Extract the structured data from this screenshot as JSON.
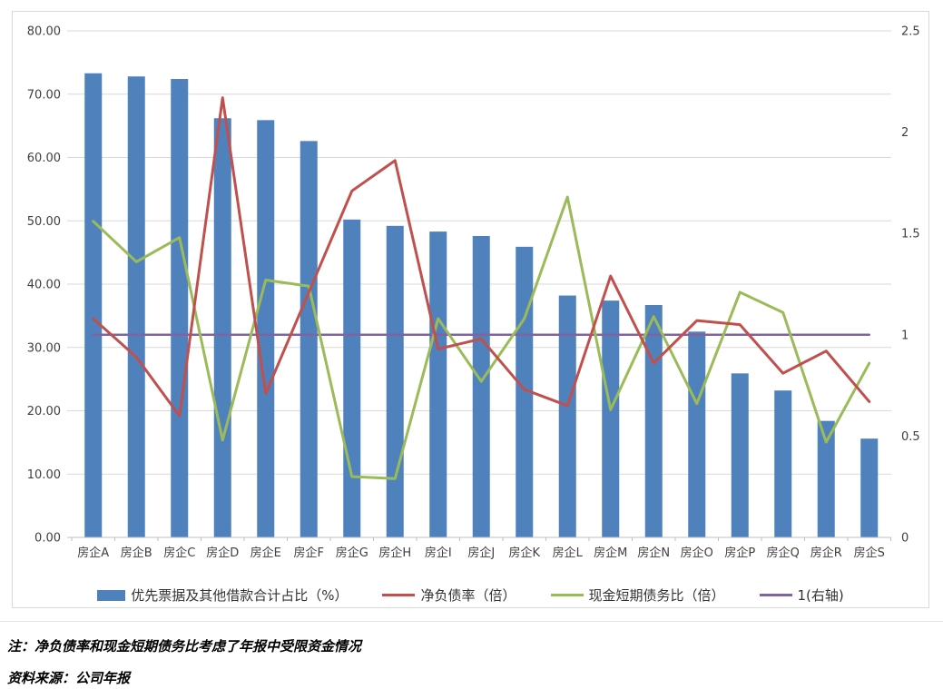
{
  "chart_data": {
    "type": "combo",
    "categories": [
      "房企A",
      "房企B",
      "房企C",
      "房企D",
      "房企E",
      "房企F",
      "房企G",
      "房企H",
      "房企I",
      "房企J",
      "房企K",
      "房企L",
      "房企M",
      "房企N",
      "房企O",
      "房企P",
      "房企Q",
      "房企R",
      "房企S"
    ],
    "series": [
      {
        "name": "优先票据及其他借款合计占比（%）",
        "type": "bar",
        "axis": "left",
        "color": "#4F81BD",
        "values": [
          73.3,
          72.8,
          72.4,
          66.2,
          65.9,
          62.6,
          50.2,
          49.2,
          48.3,
          47.6,
          45.9,
          38.2,
          37.4,
          36.7,
          32.5,
          25.9,
          23.2,
          18.4,
          15.6
        ]
      },
      {
        "name": "净负债率（倍）",
        "type": "line",
        "axis": "right",
        "color": "#C0504D",
        "values": [
          1.08,
          0.89,
          0.6,
          2.17,
          0.71,
          1.21,
          1.71,
          1.86,
          0.93,
          0.98,
          0.73,
          0.65,
          1.29,
          0.86,
          1.07,
          1.05,
          0.81,
          0.92,
          0.67
        ]
      },
      {
        "name": "现金短期债务比（倍）",
        "type": "line",
        "axis": "right",
        "color": "#9BBB59",
        "values": [
          1.56,
          1.36,
          1.48,
          0.48,
          1.27,
          1.24,
          0.3,
          0.29,
          1.08,
          0.77,
          1.08,
          1.68,
          0.63,
          1.09,
          0.66,
          1.21,
          1.11,
          0.47,
          0.86
        ]
      },
      {
        "name": "1(右轴)",
        "type": "line",
        "axis": "right",
        "color": "#8064A2",
        "constant": 1
      }
    ],
    "left_axis": {
      "min": 0,
      "max": 80,
      "ticks": [
        "80.00",
        "70.00",
        "60.00",
        "50.00",
        "40.00",
        "30.00",
        "20.00",
        "10.00",
        "0.00"
      ]
    },
    "right_axis": {
      "min": 0,
      "max": 2.5,
      "ticks": [
        "2.5",
        "2",
        "1.5",
        "1",
        "0.5",
        "0"
      ]
    },
    "grid": true,
    "legend_position": "bottom",
    "title": "",
    "xlabel": "",
    "ylabel": ""
  },
  "colors": {
    "bar": "#4F81BD",
    "net_debt_line": "#C0504D",
    "cash_ratio_line": "#9BBB59",
    "baseline": "#8064A2",
    "gridline": "#D9D9D9",
    "axis_line": "#BFBFBF",
    "axis_text": "#3F3F3F",
    "border": "#D9D9D9"
  },
  "notes": {
    "note": "注：净负债率和现金短期债务比考虑了年报中受限资金情况",
    "source": "资料来源：公司年报"
  }
}
